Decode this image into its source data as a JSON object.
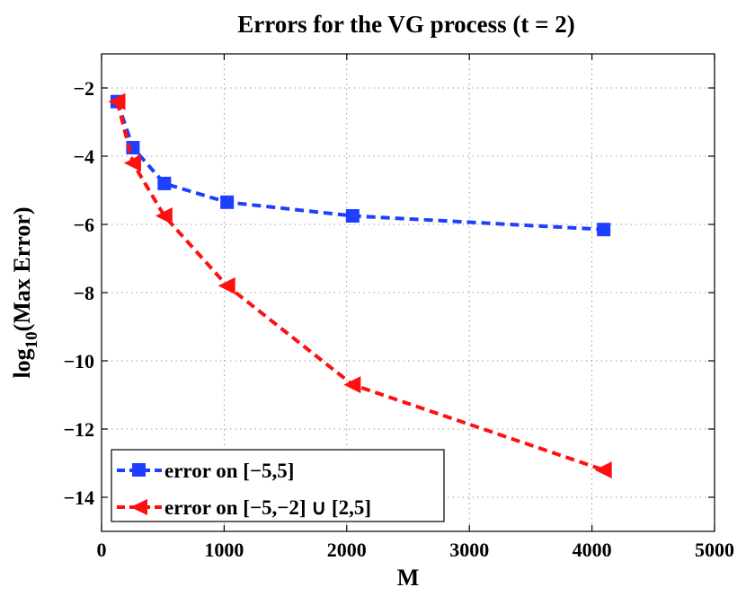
{
  "chart_data": {
    "type": "line",
    "title": "Errors for the VG process (t = 2)",
    "xlabel": "M",
    "ylabel_main": "log",
    "ylabel_sub": "10",
    "ylabel_rest": "(Max Error)",
    "xlim": [
      0,
      5000
    ],
    "ylim": [
      -15,
      -1
    ],
    "xticks": [
      0,
      1000,
      2000,
      3000,
      4000,
      5000
    ],
    "xtick_labels": [
      "0",
      "1000",
      "2000",
      "3000",
      "4000",
      "5000"
    ],
    "yticks": [
      -14,
      -12,
      -10,
      -8,
      -6,
      -4,
      -2
    ],
    "ytick_labels": [
      "−14",
      "−12",
      "−10",
      "−8",
      "−6",
      "−4",
      "−2"
    ],
    "grid": true,
    "legend_position": "bottom-left",
    "series": [
      {
        "name": "error on [−5,5]",
        "color": "#1f3fff",
        "marker": "square",
        "x": [
          128,
          256,
          512,
          1024,
          2048,
          4096
        ],
        "y": [
          -2.4,
          -3.75,
          -4.8,
          -5.35,
          -5.75,
          -6.15
        ]
      },
      {
        "name": "error on [−5,−2] ∪ [2,5]",
        "color": "#ff1010",
        "marker": "triangle-left",
        "x": [
          128,
          256,
          512,
          1024,
          2048,
          4096
        ],
        "y": [
          -2.4,
          -4.2,
          -5.75,
          -7.8,
          -10.7,
          -13.2
        ]
      }
    ]
  }
}
